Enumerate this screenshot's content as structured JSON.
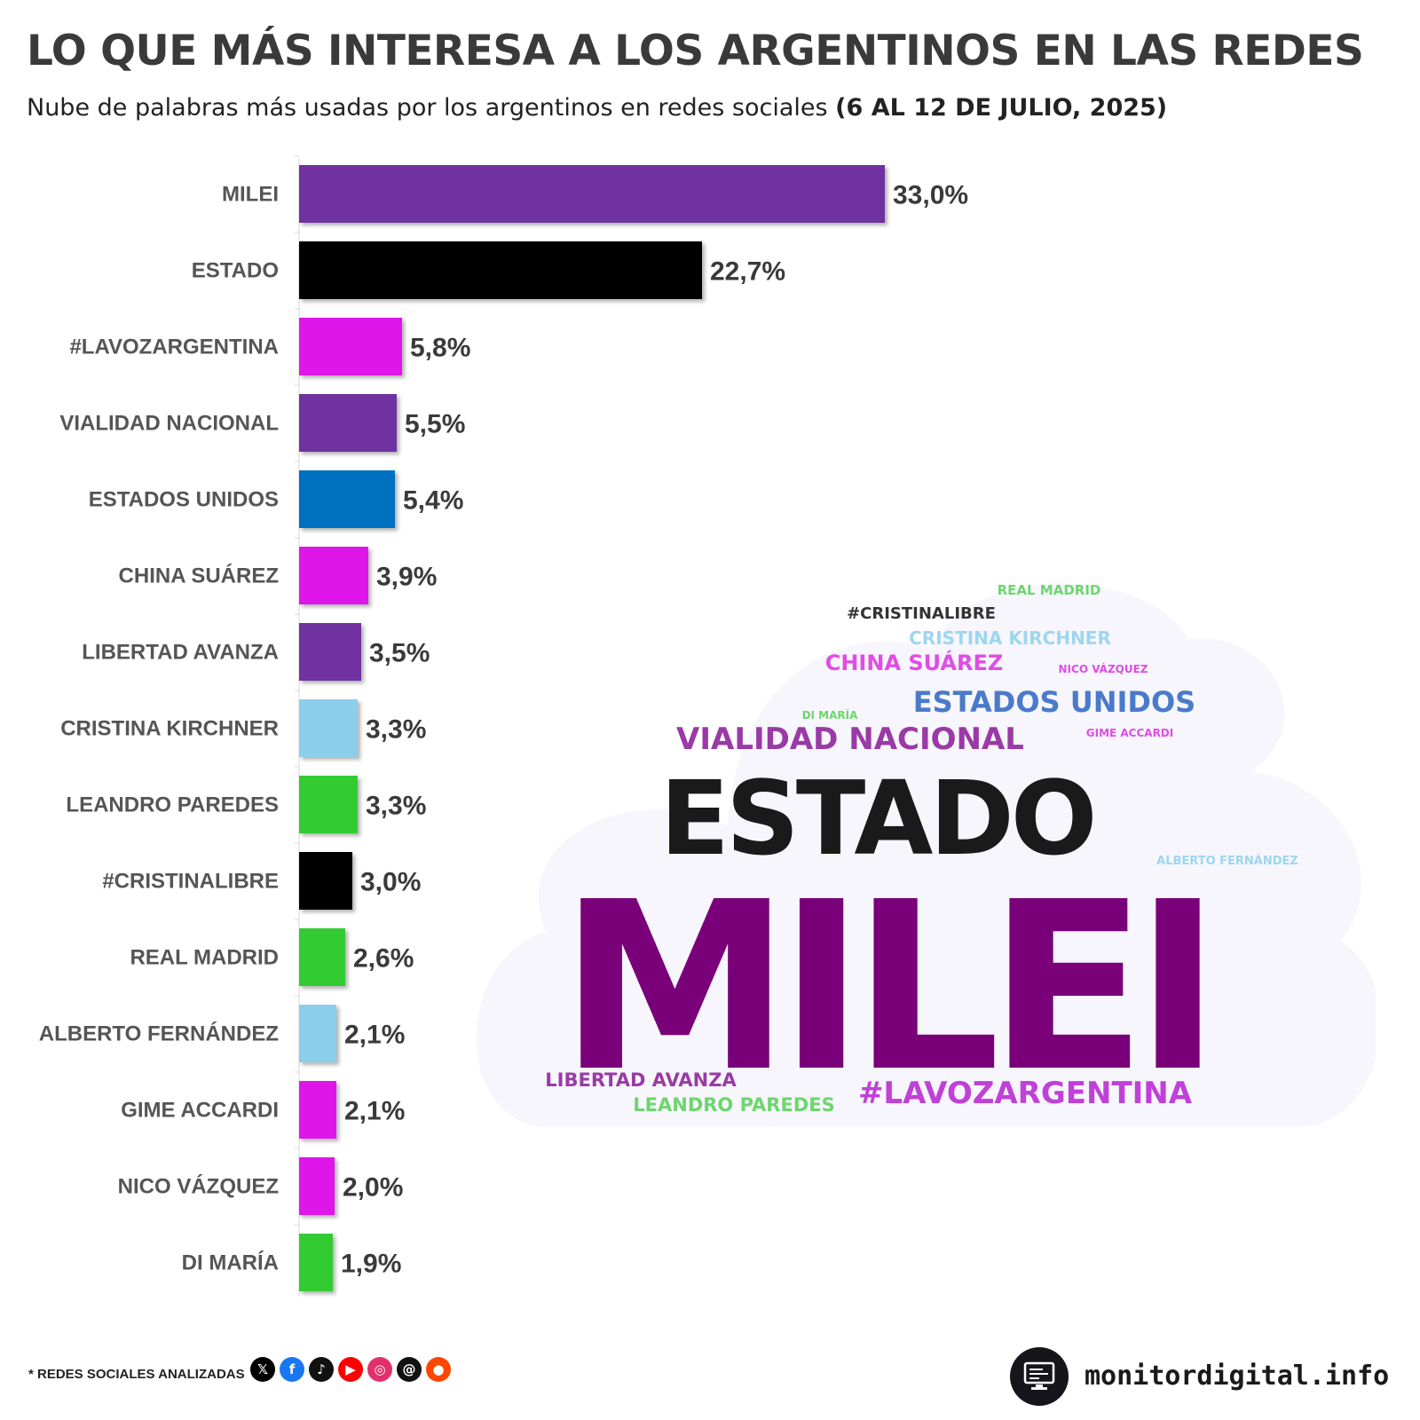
{
  "title": "LO QUE MÁS INTERESA A LOS ARGENTINOS EN LAS REDES",
  "subtitle": {
    "text": "Nube de palabras más usadas por los argentinos en redes sociales ",
    "date": "(6 AL 12 DE JULIO, 2025)"
  },
  "chart_data": {
    "type": "bar",
    "orientation": "horizontal",
    "categories": [
      "MILEI",
      "ESTADO",
      "#LAVOZARGENTINA",
      "VIALIDAD NACIONAL",
      "ESTADOS UNIDOS",
      "CHINA SUÁREZ",
      "LIBERTAD AVANZA",
      "CRISTINA KIRCHNER",
      "LEANDRO PAREDES",
      "#CRISTINALIBRE",
      "REAL MADRID",
      "ALBERTO FERNÁNDEZ",
      "GIME ACCARDI",
      "NICO VÁZQUEZ",
      "DI MARÍA"
    ],
    "values": [
      33.0,
      22.7,
      5.8,
      5.5,
      5.4,
      3.9,
      3.5,
      3.3,
      3.3,
      3.0,
      2.6,
      2.1,
      2.1,
      2.0,
      1.9
    ],
    "value_labels": [
      "33,0%",
      "22,7%",
      "5,8%",
      "5,5%",
      "5,4%",
      "3,9%",
      "3,5%",
      "3,3%",
      "3,3%",
      "3,0%",
      "2,6%",
      "2,1%",
      "2,1%",
      "2,0%",
      "1,9%"
    ],
    "colors": [
      "#7030a0",
      "#000000",
      "#df16ea",
      "#7030a0",
      "#0070c0",
      "#df16ea",
      "#7030a0",
      "#8ccfec",
      "#33cc33",
      "#000000",
      "#33cc33",
      "#8ccfec",
      "#df16ea",
      "#df16ea",
      "#33cc33"
    ],
    "xlim": [
      0,
      33.0
    ],
    "unit": "%",
    "grid": false,
    "legend": "none"
  },
  "word_cloud": {
    "words": [
      {
        "text": "REAL MADRID",
        "color": "#6dd66d"
      },
      {
        "text": "#CRISTINALIBRE",
        "color": "#333333"
      },
      {
        "text": "CRISTINA KIRCHNER",
        "color": "#9dd6ef"
      },
      {
        "text": "CHINA SUÁREZ",
        "color": "#e04ce6"
      },
      {
        "text": "NICO VÁZQUEZ",
        "color": "#e04ce6"
      },
      {
        "text": "ESTADOS UNIDOS",
        "color": "#4a7ac9"
      },
      {
        "text": "DI MARÍA",
        "color": "#6dd66d"
      },
      {
        "text": "VIALIDAD NACIONAL",
        "color": "#9a3aa6"
      },
      {
        "text": "GIME ACCARDI",
        "color": "#e04ce6"
      },
      {
        "text": "ESTADO",
        "color": "#1a1a1a"
      },
      {
        "text": "ALBERTO FERNÁNDEZ",
        "color": "#9dd6ef"
      },
      {
        "text": "MILEI",
        "color": "#7a007a"
      },
      {
        "text": "LIBERTAD AVANZA",
        "color": "#9a3aa6"
      },
      {
        "text": "#LAVOZARGENTINA",
        "color": "#c040d8"
      },
      {
        "text": "LEANDRO PAREDES",
        "color": "#6dd66d"
      }
    ]
  },
  "footer": {
    "note": "* REDES SOCIALES ANALIZADAS",
    "social_icons": [
      {
        "name": "x-icon",
        "glyph": "𝕏",
        "color": "#000000"
      },
      {
        "name": "facebook-icon",
        "glyph": "f",
        "color": "#1877f2"
      },
      {
        "name": "tiktok-icon",
        "glyph": "♪",
        "color": "#111111"
      },
      {
        "name": "youtube-icon",
        "glyph": "▶",
        "color": "#ff0000"
      },
      {
        "name": "instagram-icon",
        "glyph": "◎",
        "color": "#e1306c"
      },
      {
        "name": "threads-icon",
        "glyph": "@",
        "color": "#111111"
      },
      {
        "name": "reddit-icon",
        "glyph": "●",
        "color": "#ff4500"
      }
    ],
    "brand": "monitordigital.info"
  }
}
